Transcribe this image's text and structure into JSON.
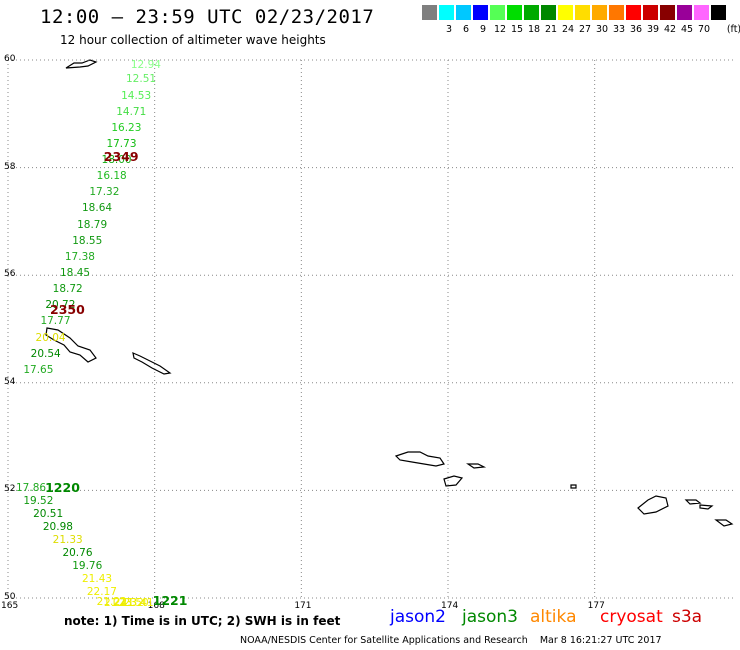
{
  "header": {
    "title": "12:00 – 23:59 UTC 02/23/2017",
    "subtitle": "12 hour collection of altimeter wave heights"
  },
  "legend": {
    "unit": "(ft)",
    "bins": [
      {
        "label": "",
        "color": "#7f7f7f"
      },
      {
        "label": "3",
        "color": "#00ffff"
      },
      {
        "label": "6",
        "color": "#00c8ff"
      },
      {
        "label": "9",
        "color": "#0000ff"
      },
      {
        "label": "12",
        "color": "#55ff55"
      },
      {
        "label": "15",
        "color": "#00dd00"
      },
      {
        "label": "18",
        "color": "#00aa00"
      },
      {
        "label": "21",
        "color": "#008800"
      },
      {
        "label": "24",
        "color": "#ffff00"
      },
      {
        "label": "27",
        "color": "#ffdd00"
      },
      {
        "label": "30",
        "color": "#ffaa00"
      },
      {
        "label": "33",
        "color": "#ff7700"
      },
      {
        "label": "36",
        "color": "#ff0000"
      },
      {
        "label": "39",
        "color": "#cc0000"
      },
      {
        "label": "42",
        "color": "#880000"
      },
      {
        "label": "45",
        "color": "#990099"
      },
      {
        "label": "70",
        "color": "#ff66ff"
      },
      {
        "label": "",
        "color": "#000000"
      }
    ]
  },
  "map": {
    "lat_labels": [
      {
        "text": "60",
        "lat": 60
      },
      {
        "text": "58",
        "lat": 58
      },
      {
        "text": "56",
        "lat": 56
      },
      {
        "text": "54",
        "lat": 54
      },
      {
        "text": "52",
        "lat": 52
      },
      {
        "text": "50",
        "lat": 50
      }
    ],
    "lon_labels": [
      {
        "text": "165",
        "lon": 165
      },
      {
        "text": "168",
        "lon": 168
      },
      {
        "text": "171",
        "lon": 171
      },
      {
        "text": "174",
        "lon": 174
      },
      {
        "text": "177",
        "lon": 177
      }
    ],
    "track_north": [
      {
        "value": "12.94",
        "lat": 59.9,
        "lon": 167.8,
        "color": "#88ff88"
      },
      {
        "value": "12.51",
        "lat": 59.64,
        "lon": 167.7,
        "color": "#66ee66"
      },
      {
        "value": "14.53",
        "lat": 59.34,
        "lon": 167.6,
        "color": "#55ee55"
      },
      {
        "value": "14.71",
        "lat": 59.04,
        "lon": 167.5,
        "color": "#44dd44"
      },
      {
        "value": "16.23",
        "lat": 58.74,
        "lon": 167.4,
        "color": "#22cc22"
      },
      {
        "value": "17.73",
        "lat": 58.44,
        "lon": 167.3,
        "color": "#11bb11"
      },
      {
        "value": "18.00",
        "lat": 58.14,
        "lon": 167.2,
        "color": "#11aa11"
      },
      {
        "value": "16.18",
        "lat": 57.84,
        "lon": 167.1,
        "color": "#22bb22"
      },
      {
        "value": "17.32",
        "lat": 57.54,
        "lon": 166.95,
        "color": "#22aa22"
      },
      {
        "value": "18.64",
        "lat": 57.24,
        "lon": 166.8,
        "color": "#119911"
      },
      {
        "value": "18.79",
        "lat": 56.94,
        "lon": 166.7,
        "color": "#119911"
      },
      {
        "value": "18.55",
        "lat": 56.64,
        "lon": 166.6,
        "color": "#119911"
      },
      {
        "value": "17.38",
        "lat": 56.34,
        "lon": 166.45,
        "color": "#22aa22"
      },
      {
        "value": "18.45",
        "lat": 56.04,
        "lon": 166.35,
        "color": "#119911"
      },
      {
        "value": "18.72",
        "lat": 55.74,
        "lon": 166.2,
        "color": "#119911"
      },
      {
        "value": "20.72",
        "lat": 55.44,
        "lon": 166.05,
        "color": "#008800"
      },
      {
        "value": "17.77",
        "lat": 55.14,
        "lon": 165.95,
        "color": "#22aa22"
      },
      {
        "value": "20.04",
        "lat": 54.84,
        "lon": 165.85,
        "color": "#dddd00"
      },
      {
        "value": "20.54",
        "lat": 54.54,
        "lon": 165.75,
        "color": "#008800"
      },
      {
        "value": "17.65",
        "lat": 54.24,
        "lon": 165.6,
        "color": "#22aa22"
      }
    ],
    "track_south": [
      {
        "value": "17.86",
        "lat": 52.04,
        "lon": 165.45,
        "color": "#22aa22"
      },
      {
        "value": "19.52",
        "lat": 51.8,
        "lon": 165.6,
        "color": "#119911"
      },
      {
        "value": "20.51",
        "lat": 51.56,
        "lon": 165.8,
        "color": "#008800"
      },
      {
        "value": "20.98",
        "lat": 51.32,
        "lon": 166.0,
        "color": "#008800"
      },
      {
        "value": "21.33",
        "lat": 51.08,
        "lon": 166.2,
        "color": "#dddd00"
      },
      {
        "value": "20.76",
        "lat": 50.84,
        "lon": 166.4,
        "color": "#008800"
      },
      {
        "value": "19.76",
        "lat": 50.6,
        "lon": 166.6,
        "color": "#119911"
      },
      {
        "value": "21.43",
        "lat": 50.36,
        "lon": 166.8,
        "color": "#eeee00"
      },
      {
        "value": "22.17",
        "lat": 50.12,
        "lon": 166.9,
        "color": "#eeee00"
      },
      {
        "value": "21.22",
        "lat": 49.92,
        "lon": 167.1,
        "color": "#eeee00"
      },
      {
        "value": "21.41",
        "lat": 49.72,
        "lon": 167.25,
        "color": "#eeee00"
      },
      {
        "value": "22.32",
        "lat": 49.52,
        "lon": 167.45,
        "color": "#eeee00"
      },
      {
        "value": "23.50",
        "lat": 49.32,
        "lon": 167.55,
        "color": "#eeee00"
      },
      {
        "value": "23.41",
        "lat": 49.12,
        "lon": 167.65,
        "color": "#eeee00"
      }
    ],
    "time_labels": [
      {
        "text": "2349",
        "lat": 58.2,
        "lon": 167.0,
        "color": "#880000"
      },
      {
        "text": "2350",
        "lat": 55.35,
        "lon": 165.9,
        "color": "#880000"
      },
      {
        "text": "1220",
        "lat": 52.05,
        "lon": 165.8,
        "color": "#008800"
      },
      {
        "text": "1221",
        "lat": 49.95,
        "lon": 168.0,
        "color": "#008800"
      }
    ]
  },
  "note": "note:  1) Time is in UTC;  2) SWH is in feet",
  "satellites": [
    {
      "name": "jason2",
      "color": "#0000ff"
    },
    {
      "name": "jason3",
      "color": "#008800"
    },
    {
      "name": "altika",
      "color": "#ff8800"
    },
    {
      "name": "cryosat",
      "color": "#ff0000"
    },
    {
      "name": "s3a",
      "color": "#cc0000"
    }
  ],
  "footer": {
    "credit": "NOAA/NESDIS Center for Satellite Applications and Research",
    "timestamp": "Mar  8 16:21:27 UTC 2017"
  }
}
